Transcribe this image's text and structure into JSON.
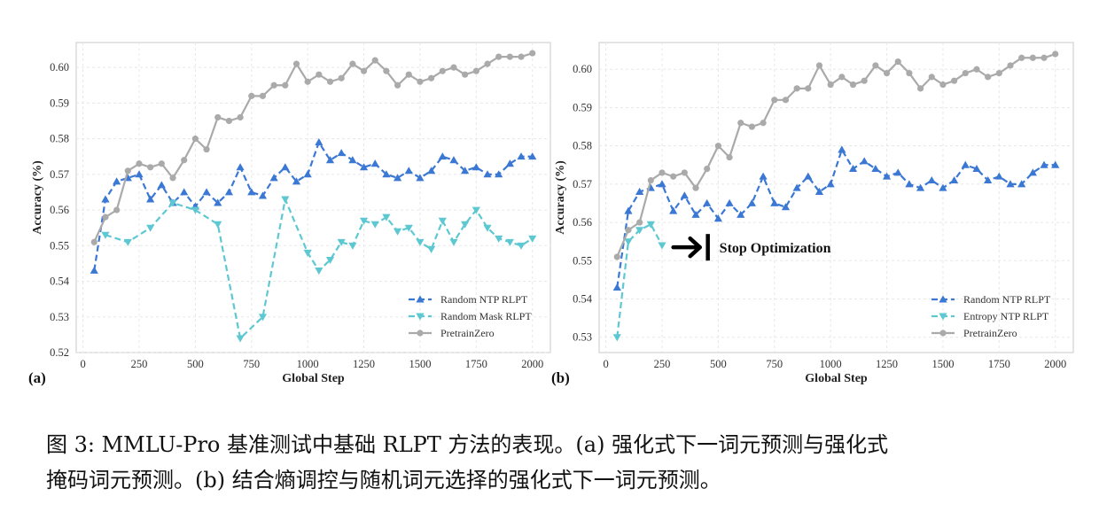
{
  "chart_data": [
    {
      "panel_label": "(a)",
      "type": "line",
      "title": "",
      "xlabel": "Global Step",
      "ylabel": "Accuracy (%)",
      "xlim": [
        -30,
        2080
      ],
      "ylim": [
        0.52,
        0.607
      ],
      "xticks": [
        0,
        250,
        500,
        750,
        1000,
        1250,
        1500,
        1750,
        2000
      ],
      "xtick_labels": [
        "0",
        "250",
        "500",
        "750",
        "1000",
        "1250",
        "1500",
        "1750",
        "2000"
      ],
      "yticks": [
        0.52,
        0.53,
        0.54,
        0.55,
        0.56,
        0.57,
        0.58,
        0.59,
        0.6
      ],
      "ytick_labels": [
        "0.52",
        "0.53",
        "0.54",
        "0.55",
        "0.56",
        "0.57",
        "0.58",
        "0.59",
        "0.60"
      ],
      "grid": true,
      "legend_position": "bottom-right",
      "series": [
        {
          "name": "Random NTP RLPT",
          "color": "#3a78d4",
          "style": "dashed",
          "marker": "triangle-up",
          "x": [
            50,
            100,
            150,
            200,
            250,
            300,
            350,
            400,
            450,
            500,
            550,
            600,
            650,
            700,
            750,
            800,
            850,
            900,
            950,
            1000,
            1050,
            1100,
            1150,
            1200,
            1250,
            1300,
            1350,
            1400,
            1450,
            1500,
            1550,
            1600,
            1650,
            1700,
            1750,
            1800,
            1850,
            1900,
            1950,
            2000
          ],
          "values": [
            0.543,
            0.563,
            0.568,
            0.569,
            0.57,
            0.563,
            0.567,
            0.562,
            0.565,
            0.561,
            0.565,
            0.562,
            0.565,
            0.572,
            0.565,
            0.564,
            0.569,
            0.572,
            0.568,
            0.57,
            0.579,
            0.574,
            0.576,
            0.574,
            0.572,
            0.573,
            0.57,
            0.569,
            0.571,
            0.569,
            0.571,
            0.575,
            0.574,
            0.571,
            0.572,
            0.57,
            0.57,
            0.573,
            0.575,
            0.575
          ]
        },
        {
          "name": "Random Mask RLPT",
          "color": "#5ec8d2",
          "style": "dashed",
          "marker": "triangle-down",
          "x": [
            100,
            200,
            300,
            400,
            500,
            600,
            700,
            800,
            900,
            1000,
            1050,
            1100,
            1150,
            1200,
            1250,
            1300,
            1350,
            1400,
            1450,
            1500,
            1550,
            1600,
            1650,
            1700,
            1750,
            1800,
            1850,
            1900,
            1950,
            2000
          ],
          "values": [
            0.553,
            0.551,
            0.555,
            0.562,
            0.56,
            0.556,
            0.524,
            0.53,
            0.563,
            0.548,
            0.543,
            0.546,
            0.551,
            0.55,
            0.557,
            0.556,
            0.558,
            0.554,
            0.555,
            0.551,
            0.549,
            0.557,
            0.551,
            0.556,
            0.56,
            0.555,
            0.552,
            0.551,
            0.55,
            0.552
          ]
        },
        {
          "name": "PretrainZero",
          "color": "#aaaaaa",
          "style": "solid",
          "marker": "circle",
          "x": [
            50,
            100,
            150,
            200,
            250,
            300,
            350,
            400,
            450,
            500,
            550,
            600,
            650,
            700,
            750,
            800,
            850,
            900,
            950,
            1000,
            1050,
            1100,
            1150,
            1200,
            1250,
            1300,
            1350,
            1400,
            1450,
            1500,
            1550,
            1600,
            1650,
            1700,
            1750,
            1800,
            1850,
            1900,
            1950,
            2000
          ],
          "values": [
            0.551,
            0.558,
            0.56,
            0.571,
            0.573,
            0.572,
            0.573,
            0.569,
            0.574,
            0.58,
            0.577,
            0.586,
            0.585,
            0.586,
            0.592,
            0.592,
            0.595,
            0.595,
            0.601,
            0.596,
            0.598,
            0.596,
            0.597,
            0.601,
            0.599,
            0.602,
            0.599,
            0.595,
            0.598,
            0.596,
            0.597,
            0.599,
            0.6,
            0.598,
            0.599,
            0.601,
            0.603,
            0.603,
            0.603,
            0.604
          ]
        }
      ]
    },
    {
      "panel_label": "(b)",
      "type": "line",
      "title": "",
      "xlabel": "Global Step",
      "ylabel": "Accuracy (%)",
      "xlim": [
        -30,
        2080
      ],
      "ylim": [
        0.526,
        0.607
      ],
      "xticks": [
        0,
        250,
        500,
        750,
        1000,
        1250,
        1500,
        1750,
        2000
      ],
      "xtick_labels": [
        "0",
        "250",
        "500",
        "750",
        "1000",
        "1250",
        "1500",
        "1750",
        "2000"
      ],
      "yticks": [
        0.53,
        0.54,
        0.55,
        0.56,
        0.57,
        0.58,
        0.59,
        0.6
      ],
      "ytick_labels": [
        "0.53",
        "0.54",
        "0.55",
        "0.56",
        "0.57",
        "0.58",
        "0.59",
        "0.60"
      ],
      "grid": true,
      "legend_position": "bottom-right",
      "annotation": {
        "text": "Stop Optimization",
        "x": 300,
        "y": 0.5535,
        "icon": "arrow-to-bar-icon"
      },
      "series": [
        {
          "name": "Random NTP RLPT",
          "color": "#3a78d4",
          "style": "dashed",
          "marker": "triangle-up",
          "x": [
            50,
            100,
            150,
            200,
            250,
            300,
            350,
            400,
            450,
            500,
            550,
            600,
            650,
            700,
            750,
            800,
            850,
            900,
            950,
            1000,
            1050,
            1100,
            1150,
            1200,
            1250,
            1300,
            1350,
            1400,
            1450,
            1500,
            1550,
            1600,
            1650,
            1700,
            1750,
            1800,
            1850,
            1900,
            1950,
            2000
          ],
          "values": [
            0.543,
            0.563,
            0.568,
            0.569,
            0.57,
            0.563,
            0.567,
            0.562,
            0.565,
            0.561,
            0.565,
            0.562,
            0.565,
            0.572,
            0.565,
            0.564,
            0.569,
            0.572,
            0.568,
            0.57,
            0.579,
            0.574,
            0.576,
            0.574,
            0.572,
            0.573,
            0.57,
            0.569,
            0.571,
            0.569,
            0.571,
            0.575,
            0.574,
            0.571,
            0.572,
            0.57,
            0.57,
            0.573,
            0.575,
            0.575
          ]
        },
        {
          "name": "Entropy NTP RLPT",
          "color": "#5ec8d2",
          "style": "dashed",
          "marker": "triangle-down",
          "x": [
            50,
            100,
            150,
            200,
            250
          ],
          "values": [
            0.53,
            0.555,
            0.558,
            0.5595,
            0.554
          ]
        },
        {
          "name": "PretrainZero",
          "color": "#aaaaaa",
          "style": "solid",
          "marker": "circle",
          "x": [
            50,
            100,
            150,
            200,
            250,
            300,
            350,
            400,
            450,
            500,
            550,
            600,
            650,
            700,
            750,
            800,
            850,
            900,
            950,
            1000,
            1050,
            1100,
            1150,
            1200,
            1250,
            1300,
            1350,
            1400,
            1450,
            1500,
            1550,
            1600,
            1650,
            1700,
            1750,
            1800,
            1850,
            1900,
            1950,
            2000
          ],
          "values": [
            0.551,
            0.558,
            0.56,
            0.571,
            0.573,
            0.572,
            0.573,
            0.569,
            0.574,
            0.58,
            0.577,
            0.586,
            0.585,
            0.586,
            0.592,
            0.592,
            0.595,
            0.595,
            0.601,
            0.596,
            0.598,
            0.596,
            0.597,
            0.601,
            0.599,
            0.602,
            0.599,
            0.595,
            0.598,
            0.596,
            0.597,
            0.599,
            0.6,
            0.598,
            0.599,
            0.601,
            0.603,
            0.603,
            0.603,
            0.604
          ]
        }
      ]
    }
  ],
  "caption": {
    "line1": "图 3:  MMLU-Pro 基准测试中基础 RLPT 方法的表现。(a) 强化式下一词元预测与强化式",
    "line2": "掩码词元预测。(b) 结合熵调控与随机词元选择的强化式下一词元预测。"
  }
}
